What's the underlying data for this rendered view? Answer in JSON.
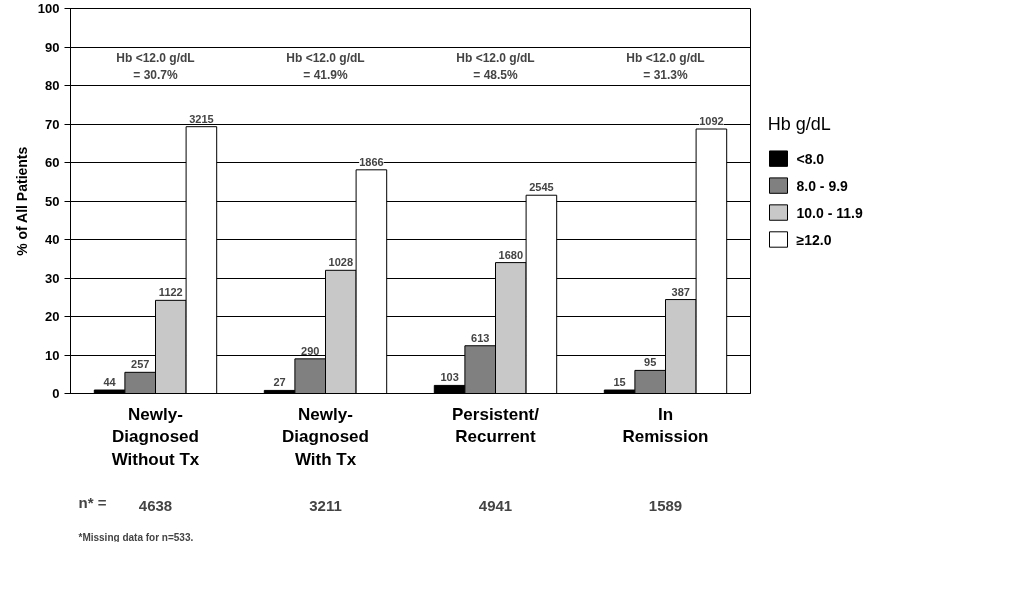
{
  "chart_data": {
    "type": "bar",
    "ylabel": "% of All Patients",
    "legend_title": "Hb g/dL",
    "categories": [
      "Newly-\nDiagnosed\nWithout Tx",
      "Newly-\nDiagnosed\nWith Tx",
      "Persistent/\nRecurrent",
      "In\nRemission"
    ],
    "series": [
      {
        "name": "<8.0",
        "color": "#000000",
        "values": [
          0.9,
          0.8,
          2.1,
          0.9
        ]
      },
      {
        "name": "8.0 - 9.9",
        "color": "#808080",
        "values": [
          5.5,
          9.0,
          12.4,
          6.0
        ]
      },
      {
        "name": "10.0 - 11.9",
        "color": "#c8c8c8",
        "values": [
          24.2,
          32.0,
          34.0,
          24.4
        ]
      },
      {
        "name": "≥12.0",
        "color": "#ffffff",
        "values": [
          69.3,
          58.1,
          51.5,
          68.7
        ]
      }
    ],
    "ylim": [
      0,
      100
    ],
    "yticks": [
      0,
      10,
      20,
      30,
      40,
      50,
      60,
      70,
      80,
      90,
      100
    ],
    "grid": "y",
    "legend": "right",
    "annotations": [
      "Hb <12.0 g/dL\n= 30.7%",
      "Hb <12.0 g/dL\n= 41.9%",
      "Hb <12.0 g/dL\n= 48.5%",
      "Hb <12.0 g/dL\n= 31.3%",
      "n* =",
      "4638",
      "3211",
      "4941",
      "1589",
      "*Missing data for n=533.",
      "44",
      "27",
      "103",
      "15",
      "257",
      "290",
      "613",
      "95",
      "1122",
      "1028",
      "1680",
      "387",
      "3215",
      "1866",
      "2545",
      "1092"
    ]
  }
}
